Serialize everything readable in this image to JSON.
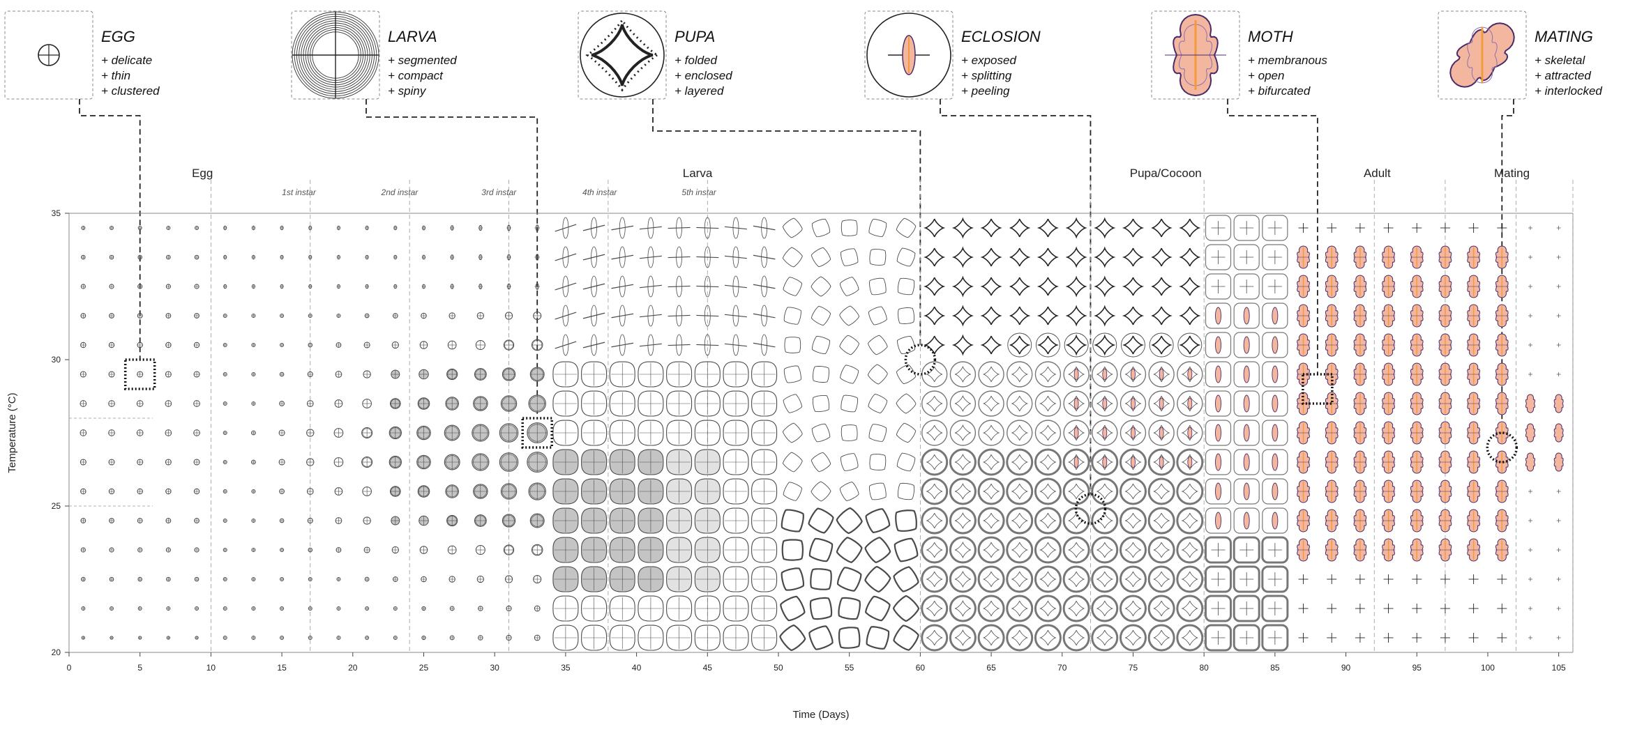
{
  "legend": [
    {
      "title": "EGG",
      "icon": "egg-icon",
      "traits": [
        "+  delicate",
        "+  thin",
        "+  clustered"
      ],
      "sample": {
        "day": 5,
        "temp": 29.5
      }
    },
    {
      "title": "LARVA",
      "icon": "larva-icon",
      "traits": [
        "+  segmented",
        "+  compact",
        "+  spiny"
      ],
      "sample": {
        "day": 33,
        "temp": 27.5
      }
    },
    {
      "title": "PUPA",
      "icon": "pupa-icon",
      "traits": [
        "+  folded",
        "+  enclosed",
        "+  layered"
      ],
      "sample": {
        "day": 60,
        "temp": 30
      }
    },
    {
      "title": "ECLOSION",
      "icon": "eclosion-icon",
      "traits": [
        "+  exposed",
        "+  splitting",
        "+  peeling"
      ],
      "sample": {
        "day": 72,
        "temp": 24.9
      }
    },
    {
      "title": "MOTH",
      "icon": "moth-icon",
      "traits": [
        "+  membranous",
        "+  open",
        "+  bifurcated"
      ],
      "sample": {
        "day": 88,
        "temp": 29
      }
    },
    {
      "title": "MATING",
      "icon": "mating-icon",
      "traits": [
        "+  skeletal",
        "+  attracted",
        "+  interlocked"
      ],
      "sample": {
        "day": 101,
        "temp": 27
      }
    }
  ],
  "stages": [
    {
      "label": "Egg",
      "day": 9.4
    },
    {
      "label": "Larva",
      "day": 44.3
    },
    {
      "label": "Pupa/Cocoon",
      "day": 77.3
    },
    {
      "label": "Adult",
      "day": 92.2
    },
    {
      "label": "Mating",
      "day": 101.7
    }
  ],
  "instars": [
    {
      "label": "1st instar",
      "day": 16.2
    },
    {
      "label": "2nd instar",
      "day": 23.3
    },
    {
      "label": "3rd instar",
      "day": 30.3
    },
    {
      "label": "4th instar",
      "day": 37.4
    },
    {
      "label": "5th instar",
      "day": 44.4
    }
  ],
  "chart_data": {
    "type": "heatmap",
    "title": "",
    "xlabel": "Time (Days)",
    "ylabel": "Temperature (°C)",
    "xlim": [
      0,
      106
    ],
    "ylim": [
      20,
      35
    ],
    "xticks": [
      0,
      5,
      10,
      15,
      20,
      25,
      30,
      35,
      40,
      45,
      50,
      55,
      60,
      65,
      70,
      75,
      80,
      85,
      90,
      95,
      100,
      105
    ],
    "yticks": [
      20,
      25,
      30,
      35
    ],
    "x_step_days": 2,
    "y_step_celsius": 1,
    "stage_boundaries_days": [
      10,
      17,
      24,
      31,
      38,
      45,
      60,
      72,
      80,
      92,
      97,
      102,
      106
    ],
    "reference_lines": [
      {
        "axis": "y",
        "value": 25
      },
      {
        "axis": "y",
        "value": 28
      }
    ],
    "grid": false,
    "colors": {
      "ink": "#222222",
      "glyph": "#4a4a4a",
      "larva_fill": "#c4c4c4",
      "larva_fill_light": "#e2e2e2",
      "moth_fill": "#f3b7a0",
      "moth_core": "#f59a3c",
      "moth_outline": "#4b2a68"
    }
  }
}
